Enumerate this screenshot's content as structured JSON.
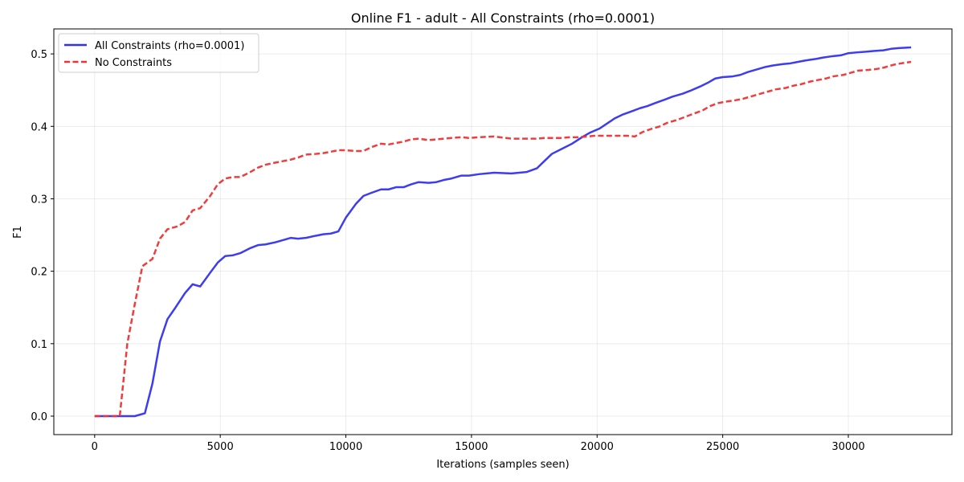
{
  "chart_data": {
    "type": "line",
    "title": "Online F1 - adult - All Constraints (rho=0.0001)",
    "xlabel": "Iterations (samples seen)",
    "ylabel": "F1",
    "xlim": [
      -1625,
      34125
    ],
    "ylim": [
      -0.0255,
      0.5345
    ],
    "xticks": [
      0,
      5000,
      10000,
      15000,
      20000,
      25000,
      30000
    ],
    "xtick_labels": [
      "0",
      "5000",
      "10000",
      "15000",
      "20000",
      "25000",
      "30000"
    ],
    "yticks": [
      0.0,
      0.1,
      0.2,
      0.3,
      0.4,
      0.5
    ],
    "ytick_labels": [
      "0.0",
      "0.1",
      "0.2",
      "0.3",
      "0.4",
      "0.5"
    ],
    "grid": true,
    "legend_position": "upper-left",
    "series": [
      {
        "name": "All Constraints (rho=0.0001)",
        "color": "#3333ee",
        "style": "solid",
        "x": [
          0,
          1000,
          1600,
          2000,
          2300,
          2600,
          2900,
          3200,
          3600,
          3900,
          4200,
          4600,
          4900,
          5200,
          5500,
          5800,
          6200,
          6500,
          6800,
          7200,
          7800,
          8100,
          8400,
          8800,
          9100,
          9400,
          9700,
          10000,
          10400,
          10700,
          11000,
          11400,
          11700,
          12000,
          12300,
          12600,
          12900,
          13300,
          13600,
          13900,
          14200,
          14600,
          14900,
          15300,
          15900,
          16600,
          16900,
          17200,
          17600,
          17900,
          18200,
          18600,
          19000,
          19400,
          19700,
          20100,
          20400,
          20700,
          21000,
          21400,
          21700,
          22000,
          22300,
          22700,
          23000,
          23400,
          23700,
          24100,
          24400,
          24700,
          25000,
          25400,
          25700,
          26000,
          26400,
          26700,
          27000,
          27400,
          27700,
          28000,
          28300,
          28700,
          29000,
          29400,
          29700,
          30000,
          30300,
          30700,
          31000,
          31400,
          31700,
          32000,
          32500
        ],
        "values": [
          0.0,
          0.0,
          0.0,
          0.004,
          0.045,
          0.103,
          0.134,
          0.149,
          0.17,
          0.182,
          0.179,
          0.198,
          0.212,
          0.221,
          0.222,
          0.225,
          0.232,
          0.236,
          0.237,
          0.24,
          0.246,
          0.245,
          0.246,
          0.249,
          0.251,
          0.252,
          0.255,
          0.274,
          0.293,
          0.304,
          0.308,
          0.313,
          0.313,
          0.316,
          0.316,
          0.32,
          0.323,
          0.322,
          0.323,
          0.326,
          0.328,
          0.332,
          0.332,
          0.334,
          0.336,
          0.335,
          0.336,
          0.337,
          0.342,
          0.352,
          0.362,
          0.369,
          0.376,
          0.385,
          0.391,
          0.397,
          0.404,
          0.411,
          0.416,
          0.421,
          0.425,
          0.428,
          0.432,
          0.437,
          0.441,
          0.445,
          0.449,
          0.455,
          0.46,
          0.466,
          0.468,
          0.469,
          0.471,
          0.475,
          0.479,
          0.482,
          0.484,
          0.486,
          0.487,
          0.489,
          0.491,
          0.493,
          0.495,
          0.497,
          0.498,
          0.501,
          0.502,
          0.503,
          0.504,
          0.505,
          0.507,
          0.508,
          0.509
        ]
      },
      {
        "name": "No Constraints",
        "color": "#ee3333",
        "style": "dashed",
        "x": [
          0,
          900,
          1000,
          1300,
          1600,
          1900,
          2300,
          2600,
          2900,
          3300,
          3600,
          3900,
          4200,
          4600,
          4900,
          5200,
          5500,
          5800,
          6200,
          6500,
          6800,
          7200,
          7500,
          7800,
          8100,
          8400,
          8800,
          9100,
          9400,
          9700,
          10000,
          10400,
          10700,
          11000,
          11400,
          11700,
          12000,
          12300,
          12600,
          12900,
          13300,
          13600,
          13900,
          14200,
          14600,
          14900,
          15300,
          15900,
          16600,
          16900,
          17200,
          17600,
          17900,
          18200,
          18600,
          18900,
          19200,
          19600,
          19900,
          20300,
          20600,
          20900,
          21200,
          21500,
          21800,
          22200,
          22500,
          22800,
          23200,
          23500,
          23800,
          24200,
          24500,
          24800,
          25100,
          25500,
          25800,
          26100,
          26500,
          26800,
          27100,
          27500,
          27800,
          28100,
          28500,
          28800,
          29100,
          29400,
          29800,
          30100,
          30400,
          30800,
          31100,
          31400,
          31800,
          32100,
          32500
        ],
        "values": [
          0.0,
          0.0,
          0.0,
          0.1,
          0.155,
          0.207,
          0.217,
          0.245,
          0.258,
          0.262,
          0.268,
          0.284,
          0.287,
          0.304,
          0.32,
          0.328,
          0.33,
          0.33,
          0.337,
          0.343,
          0.347,
          0.35,
          0.352,
          0.354,
          0.357,
          0.361,
          0.362,
          0.363,
          0.365,
          0.367,
          0.367,
          0.366,
          0.366,
          0.371,
          0.376,
          0.375,
          0.377,
          0.379,
          0.382,
          0.383,
          0.381,
          0.382,
          0.383,
          0.384,
          0.385,
          0.384,
          0.385,
          0.386,
          0.383,
          0.383,
          0.383,
          0.383,
          0.384,
          0.384,
          0.384,
          0.385,
          0.385,
          0.386,
          0.387,
          0.387,
          0.387,
          0.387,
          0.387,
          0.386,
          0.392,
          0.397,
          0.4,
          0.405,
          0.409,
          0.413,
          0.417,
          0.422,
          0.428,
          0.432,
          0.434,
          0.436,
          0.438,
          0.441,
          0.445,
          0.448,
          0.451,
          0.453,
          0.456,
          0.458,
          0.462,
          0.464,
          0.466,
          0.469,
          0.471,
          0.474,
          0.477,
          0.478,
          0.479,
          0.481,
          0.485,
          0.487,
          0.489
        ]
      }
    ]
  }
}
